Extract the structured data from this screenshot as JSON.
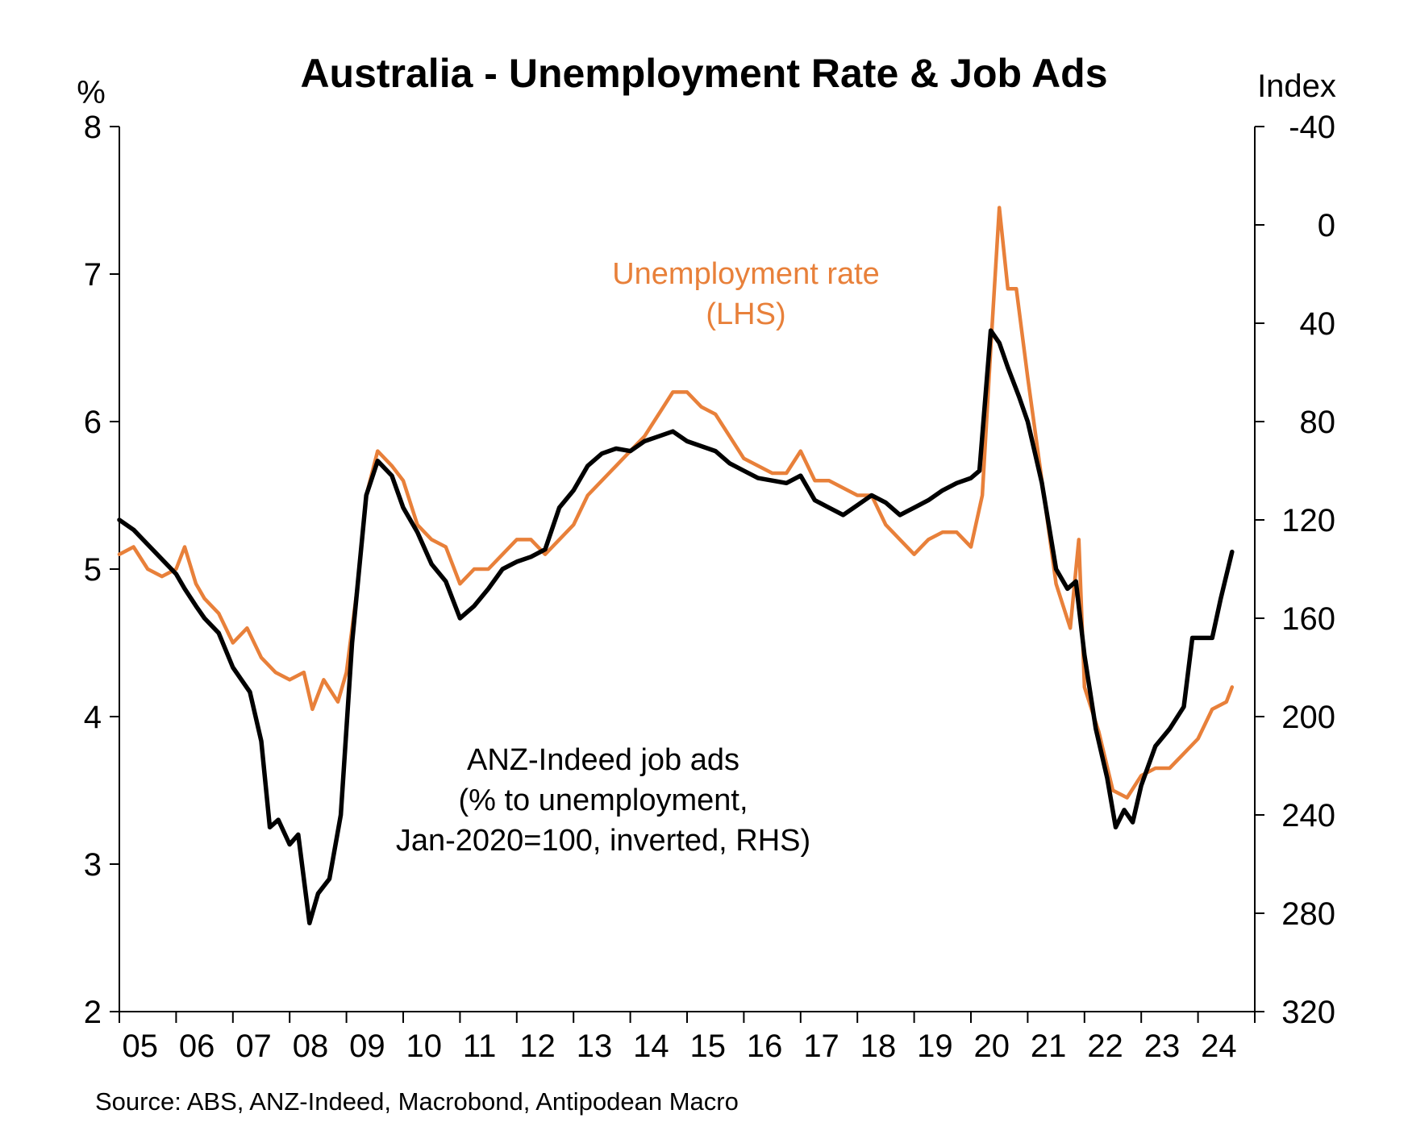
{
  "chart_data": {
    "type": "line",
    "title": "Australia - Unemployment Rate & Job Ads",
    "source": "Source: ABS, ANZ-Indeed, Macrobond, Antipodean Macro",
    "y_left": {
      "unit": "%",
      "ylim": [
        2,
        8
      ],
      "ticks": [
        "2",
        "3",
        "4",
        "5",
        "6",
        "7",
        "8"
      ]
    },
    "y_right": {
      "unit": "Index",
      "ylim": [
        -40,
        320
      ],
      "inverted": true,
      "ticks": [
        "-40",
        "0",
        "40",
        "80",
        "120",
        "160",
        "200",
        "240",
        "280",
        "320"
      ]
    },
    "x": {
      "xlim": [
        2005,
        2025
      ],
      "tick_labels": [
        "05",
        "06",
        "07",
        "08",
        "09",
        "10",
        "11",
        "12",
        "13",
        "14",
        "15",
        "16",
        "17",
        "18",
        "19",
        "20",
        "21",
        "22",
        "23",
        "24"
      ]
    },
    "grid": false,
    "legend": "inline annotations",
    "series": [
      {
        "name": "Unemployment rate (LHS)",
        "label_lines": [
          "Unemployment rate",
          "(LHS)"
        ],
        "axis": "left",
        "color": "#E8803A",
        "points": [
          [
            2005.0,
            5.1
          ],
          [
            2005.25,
            5.15
          ],
          [
            2005.5,
            5.0
          ],
          [
            2005.75,
            4.95
          ],
          [
            2006.0,
            5.0
          ],
          [
            2006.15,
            5.15
          ],
          [
            2006.35,
            4.9
          ],
          [
            2006.5,
            4.8
          ],
          [
            2006.75,
            4.7
          ],
          [
            2007.0,
            4.5
          ],
          [
            2007.25,
            4.6
          ],
          [
            2007.5,
            4.4
          ],
          [
            2007.75,
            4.3
          ],
          [
            2008.0,
            4.25
          ],
          [
            2008.25,
            4.3
          ],
          [
            2008.4,
            4.05
          ],
          [
            2008.6,
            4.25
          ],
          [
            2008.85,
            4.1
          ],
          [
            2009.0,
            4.3
          ],
          [
            2009.2,
            4.9
          ],
          [
            2009.35,
            5.5
          ],
          [
            2009.55,
            5.8
          ],
          [
            2009.8,
            5.7
          ],
          [
            2010.0,
            5.6
          ],
          [
            2010.25,
            5.3
          ],
          [
            2010.5,
            5.2
          ],
          [
            2010.75,
            5.15
          ],
          [
            2011.0,
            4.9
          ],
          [
            2011.25,
            5.0
          ],
          [
            2011.5,
            5.0
          ],
          [
            2011.75,
            5.1
          ],
          [
            2012.0,
            5.2
          ],
          [
            2012.25,
            5.2
          ],
          [
            2012.5,
            5.1
          ],
          [
            2012.75,
            5.2
          ],
          [
            2013.0,
            5.3
          ],
          [
            2013.25,
            5.5
          ],
          [
            2013.5,
            5.6
          ],
          [
            2013.75,
            5.7
          ],
          [
            2014.0,
            5.8
          ],
          [
            2014.25,
            5.9
          ],
          [
            2014.5,
            6.05
          ],
          [
            2014.75,
            6.2
          ],
          [
            2015.0,
            6.2
          ],
          [
            2015.25,
            6.1
          ],
          [
            2015.5,
            6.05
          ],
          [
            2015.75,
            5.9
          ],
          [
            2016.0,
            5.75
          ],
          [
            2016.25,
            5.7
          ],
          [
            2016.5,
            5.65
          ],
          [
            2016.75,
            5.65
          ],
          [
            2017.0,
            5.8
          ],
          [
            2017.25,
            5.6
          ],
          [
            2017.5,
            5.6
          ],
          [
            2017.75,
            5.55
          ],
          [
            2018.0,
            5.5
          ],
          [
            2018.25,
            5.5
          ],
          [
            2018.5,
            5.3
          ],
          [
            2018.75,
            5.2
          ],
          [
            2019.0,
            5.1
          ],
          [
            2019.25,
            5.2
          ],
          [
            2019.5,
            5.25
          ],
          [
            2019.75,
            5.25
          ],
          [
            2020.0,
            5.15
          ],
          [
            2020.2,
            5.5
          ],
          [
            2020.35,
            6.5
          ],
          [
            2020.5,
            7.45
          ],
          [
            2020.65,
            6.9
          ],
          [
            2020.8,
            6.9
          ],
          [
            2021.0,
            6.3
          ],
          [
            2021.25,
            5.6
          ],
          [
            2021.5,
            4.9
          ],
          [
            2021.75,
            4.6
          ],
          [
            2021.9,
            5.2
          ],
          [
            2022.0,
            4.2
          ],
          [
            2022.25,
            3.9
          ],
          [
            2022.5,
            3.5
          ],
          [
            2022.75,
            3.45
          ],
          [
            2023.0,
            3.6
          ],
          [
            2023.25,
            3.65
          ],
          [
            2023.5,
            3.65
          ],
          [
            2023.75,
            3.75
          ],
          [
            2024.0,
            3.85
          ],
          [
            2024.25,
            4.05
          ],
          [
            2024.5,
            4.1
          ],
          [
            2024.6,
            4.2
          ]
        ]
      },
      {
        "name": "ANZ-Indeed job ads (% to unemployment, Jan-2020=100, inverted, RHS)",
        "label_lines": [
          "ANZ-Indeed job ads",
          "(% to unemployment,",
          "Jan-2020=100, inverted, RHS)"
        ],
        "axis": "right",
        "color": "#000000",
        "points": [
          [
            2005.0,
            120
          ],
          [
            2005.25,
            124
          ],
          [
            2005.5,
            130
          ],
          [
            2005.75,
            136
          ],
          [
            2006.0,
            142
          ],
          [
            2006.15,
            148
          ],
          [
            2006.35,
            155
          ],
          [
            2006.5,
            160
          ],
          [
            2006.75,
            166
          ],
          [
            2007.0,
            180
          ],
          [
            2007.15,
            185
          ],
          [
            2007.3,
            190
          ],
          [
            2007.5,
            210
          ],
          [
            2007.65,
            245
          ],
          [
            2007.8,
            242
          ],
          [
            2008.0,
            252
          ],
          [
            2008.15,
            248
          ],
          [
            2008.35,
            284
          ],
          [
            2008.5,
            272
          ],
          [
            2008.7,
            266
          ],
          [
            2008.9,
            240
          ],
          [
            2009.1,
            170
          ],
          [
            2009.35,
            110
          ],
          [
            2009.55,
            96
          ],
          [
            2009.8,
            102
          ],
          [
            2010.0,
            115
          ],
          [
            2010.25,
            125
          ],
          [
            2010.5,
            138
          ],
          [
            2010.75,
            145
          ],
          [
            2011.0,
            160
          ],
          [
            2011.25,
            155
          ],
          [
            2011.5,
            148
          ],
          [
            2011.75,
            140
          ],
          [
            2012.0,
            137
          ],
          [
            2012.25,
            135
          ],
          [
            2012.5,
            132
          ],
          [
            2012.75,
            115
          ],
          [
            2013.0,
            108
          ],
          [
            2013.25,
            98
          ],
          [
            2013.5,
            93
          ],
          [
            2013.75,
            91
          ],
          [
            2014.0,
            92
          ],
          [
            2014.25,
            88
          ],
          [
            2014.5,
            86
          ],
          [
            2014.75,
            84
          ],
          [
            2015.0,
            88
          ],
          [
            2015.25,
            90
          ],
          [
            2015.5,
            92
          ],
          [
            2015.75,
            97
          ],
          [
            2016.0,
            100
          ],
          [
            2016.25,
            103
          ],
          [
            2016.5,
            104
          ],
          [
            2016.75,
            105
          ],
          [
            2017.0,
            102
          ],
          [
            2017.25,
            112
          ],
          [
            2017.5,
            115
          ],
          [
            2017.75,
            118
          ],
          [
            2018.0,
            114
          ],
          [
            2018.25,
            110
          ],
          [
            2018.5,
            113
          ],
          [
            2018.75,
            118
          ],
          [
            2019.0,
            115
          ],
          [
            2019.25,
            112
          ],
          [
            2019.5,
            108
          ],
          [
            2019.75,
            105
          ],
          [
            2020.0,
            103
          ],
          [
            2020.15,
            100
          ],
          [
            2020.35,
            43
          ],
          [
            2020.5,
            48
          ],
          [
            2020.65,
            58
          ],
          [
            2020.85,
            70
          ],
          [
            2021.0,
            80
          ],
          [
            2021.25,
            105
          ],
          [
            2021.5,
            140
          ],
          [
            2021.7,
            148
          ],
          [
            2021.85,
            145
          ],
          [
            2022.0,
            175
          ],
          [
            2022.2,
            205
          ],
          [
            2022.4,
            225
          ],
          [
            2022.55,
            245
          ],
          [
            2022.7,
            238
          ],
          [
            2022.85,
            243
          ],
          [
            2023.0,
            228
          ],
          [
            2023.25,
            212
          ],
          [
            2023.5,
            205
          ],
          [
            2023.75,
            196
          ],
          [
            2023.9,
            168
          ],
          [
            2024.0,
            168
          ],
          [
            2024.25,
            168
          ],
          [
            2024.4,
            152
          ],
          [
            2024.6,
            133
          ]
        ]
      }
    ]
  }
}
